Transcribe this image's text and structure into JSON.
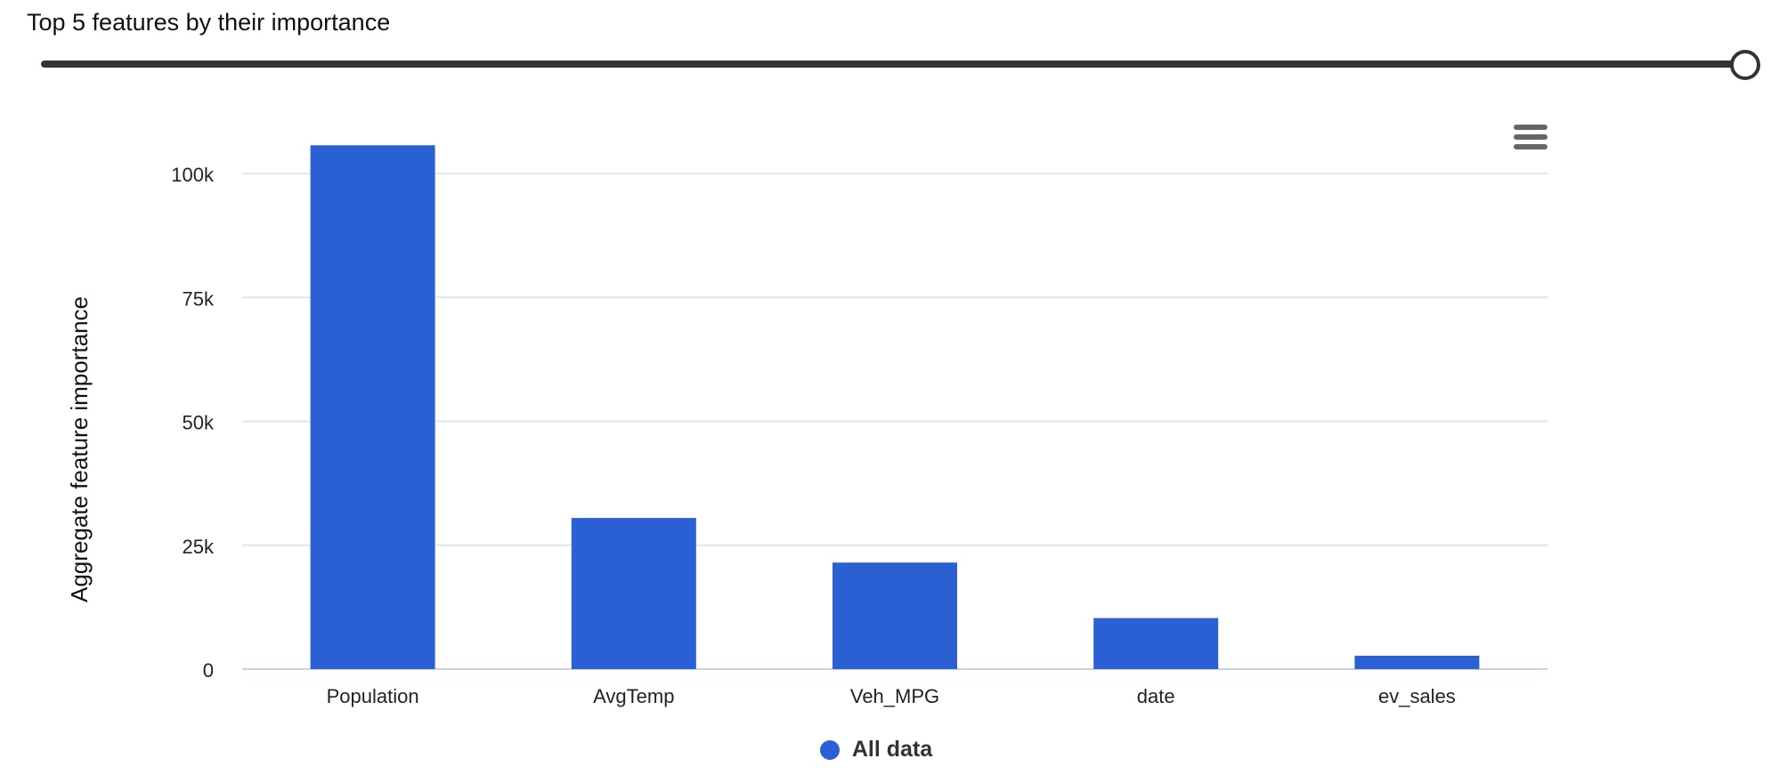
{
  "header": {
    "title": "Top 5 features by their importance"
  },
  "slider": {
    "value_fraction": 1.0
  },
  "chart_data": {
    "type": "bar",
    "categories": [
      "Population",
      "AvgTemp",
      "Veh_MPG",
      "date",
      "ev_sales"
    ],
    "series": [
      {
        "name": "All data",
        "values": [
          105700,
          30500,
          21500,
          10300,
          2700
        ]
      }
    ],
    "ylabel": "Aggregate feature importance",
    "xlabel": "",
    "ylim": [
      0,
      100000
    ],
    "yticks": [
      {
        "value": 0,
        "label": "0"
      },
      {
        "value": 25000,
        "label": "25k"
      },
      {
        "value": 50000,
        "label": "50k"
      },
      {
        "value": 75000,
        "label": "75k"
      },
      {
        "value": 100000,
        "label": "100k"
      }
    ],
    "bar_color": "#2b5fd4",
    "grid": true,
    "legend_position": "bottom"
  },
  "menu": {
    "icon": "hamburger-menu-icon"
  }
}
